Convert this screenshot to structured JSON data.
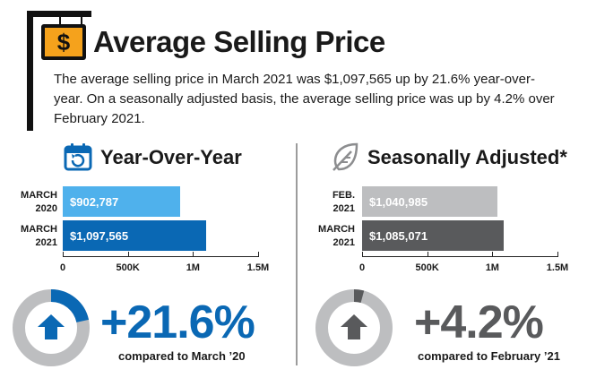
{
  "header": {
    "title": "Average Selling Price",
    "dollar_glyph": "$",
    "description": "The average selling price in March 2021 was $1,097,565 up by 21.6% year-over-year. On a seasonally adjusted basis, the average selling price was up by 4.2% over February 2021."
  },
  "yoy": {
    "title": "Year-Over-Year",
    "icon": "calendar-refresh-icon",
    "change": "+21.6%",
    "compared": "compared to March ’20",
    "color": "#0a68b4",
    "light_color": "#4fb1ec",
    "progress": 0.216
  },
  "sa": {
    "title": "Seasonally Adjusted*",
    "icon": "leaf-icon",
    "change": "+4.2%",
    "compared": "compared to February ’21",
    "color": "#595a5c",
    "light_color": "#bdbec0",
    "progress": 0.042
  },
  "chart_data": [
    {
      "type": "bar",
      "orientation": "horizontal",
      "categories": [
        [
          "MARCH",
          "2020"
        ],
        [
          "MARCH",
          "2021"
        ]
      ],
      "values": [
        902787,
        1097565
      ],
      "value_labels": [
        "$902,787",
        "$1,097,565"
      ],
      "xlim": [
        0,
        1500000
      ],
      "xticks": [
        0,
        500000,
        1000000,
        1500000
      ],
      "xtick_labels": [
        "0",
        "500K",
        "1M",
        "1.5M"
      ],
      "colors": [
        "#4fb1ec",
        "#0a68b4"
      ]
    },
    {
      "type": "bar",
      "orientation": "horizontal",
      "categories": [
        [
          "FEB.",
          "2021"
        ],
        [
          "MARCH",
          "2021"
        ]
      ],
      "values": [
        1040985,
        1085071
      ],
      "value_labels": [
        "$1,040,985",
        "$1,085,071"
      ],
      "xlim": [
        0,
        1500000
      ],
      "xticks": [
        0,
        500000,
        1000000,
        1500000
      ],
      "xtick_labels": [
        "0",
        "500K",
        "1M",
        "1.5M"
      ],
      "colors": [
        "#bdbec0",
        "#595a5c"
      ]
    }
  ]
}
